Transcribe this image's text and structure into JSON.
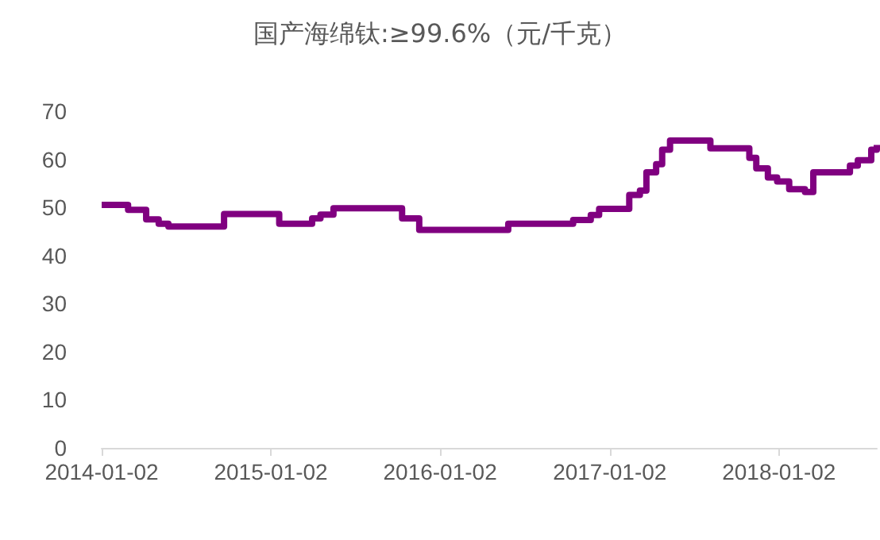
{
  "chart_data": {
    "type": "step",
    "title": "国产海绵钛:≥99.6%（元/千克）",
    "x": [
      "2014-01-02",
      "2014-02-28",
      "2014-04-08",
      "2014-05-05",
      "2014-05-26",
      "2014-09-23",
      "2015-01-20",
      "2015-04-01",
      "2015-04-19",
      "2015-05-17",
      "2015-10-12",
      "2015-11-18",
      "2016-05-28",
      "2016-10-15",
      "2016-11-22",
      "2016-12-10",
      "2017-02-13",
      "2017-03-08",
      "2017-03-22",
      "2017-04-12",
      "2017-04-25",
      "2017-05-12",
      "2017-08-07",
      "2017-10-30",
      "2017-11-14",
      "2017-12-09",
      "2017-12-29",
      "2018-01-24",
      "2018-02-27",
      "2018-03-17",
      "2018-06-04",
      "2018-06-21",
      "2018-07-20",
      "2018-08-01"
    ],
    "series": [
      {
        "color": "#800080",
        "values": [
          50.5,
          49.5,
          47.5,
          46.6,
          46,
          48.6,
          46.6,
          47.7,
          48.5,
          49.8,
          47.7,
          45.3,
          46.6,
          47.4,
          48.4,
          49.7,
          52.6,
          53.5,
          57.3,
          59,
          62,
          63.9,
          62.3,
          60.3,
          58.1,
          56.2,
          55.4,
          53.8,
          53.2,
          57.3,
          58.7,
          59.8,
          62,
          63
        ]
      }
    ],
    "xlim": [
      "2014-01-02",
      "2018-08-01"
    ],
    "xticks": [
      "2014-01-02",
      "2015-01-02",
      "2016-01-02",
      "2017-01-02",
      "2018-01-02"
    ],
    "ylim": [
      0,
      70
    ],
    "yticks": [
      0,
      10,
      20,
      30,
      40,
      50,
      60,
      70
    ],
    "grid": false,
    "marker": "none",
    "line_style": "solid"
  }
}
